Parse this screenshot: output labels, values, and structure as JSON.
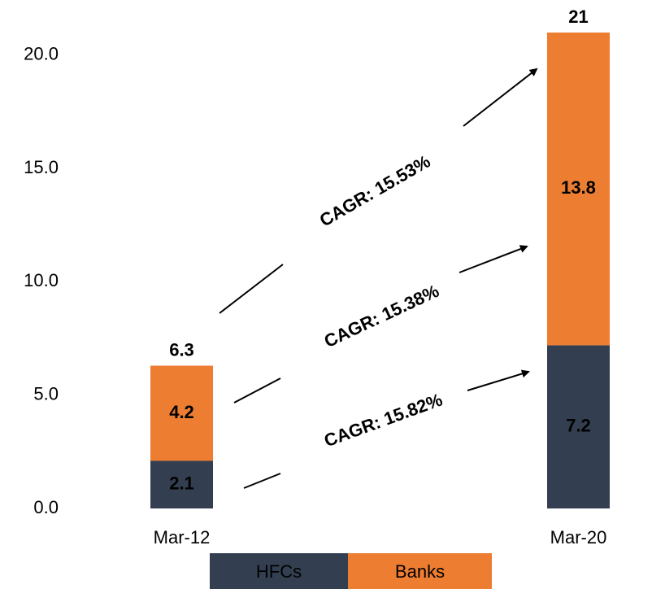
{
  "chart_data": {
    "type": "stacked_bar",
    "categories": [
      "Mar-12",
      "Mar-20"
    ],
    "series": [
      {
        "name": "HFCs",
        "color": "#333f50",
        "values": [
          2.1,
          7.2
        ]
      },
      {
        "name": "Banks",
        "color": "#ed7d31",
        "values": [
          4.2,
          13.8
        ]
      }
    ],
    "totals": [
      6.3,
      21
    ],
    "ylim": [
      0,
      21
    ],
    "yticks": [
      {
        "value": 0,
        "label": "0.0"
      },
      {
        "value": 5,
        "label": "5.0"
      },
      {
        "value": 10,
        "label": "10.0"
      },
      {
        "value": 15,
        "label": "15.0"
      },
      {
        "value": 20,
        "label": "20.0"
      }
    ],
    "annotations": [
      "CAGR: 15.53%",
      "CAGR: 15.38%",
      "CAGR: 15.82%"
    ],
    "grid": false
  }
}
